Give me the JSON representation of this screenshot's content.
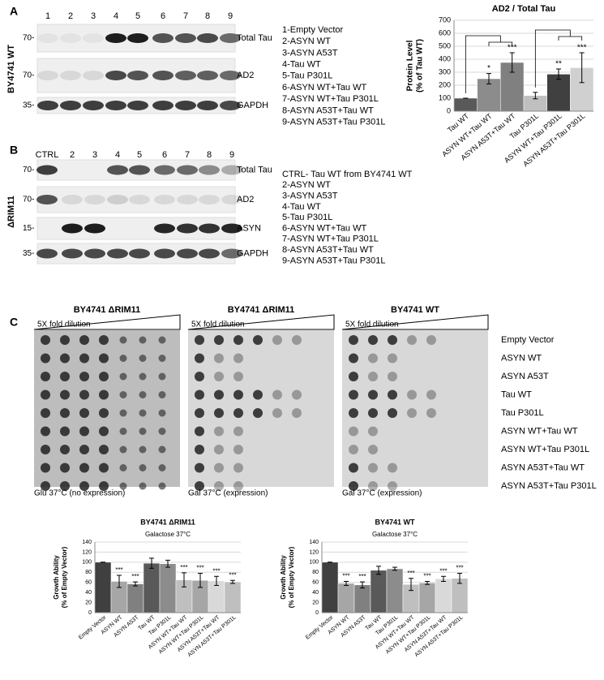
{
  "panel_a": {
    "label": "A",
    "strain": "BY4741 WT",
    "lanes": [
      "1",
      "2",
      "3",
      "4",
      "5",
      "6",
      "7",
      "8",
      "9"
    ],
    "blots": [
      {
        "marker": "70-",
        "name": "Total Tau"
      },
      {
        "marker": "70-",
        "name": "AD2"
      },
      {
        "marker": "35-",
        "name": "GAPDH"
      }
    ],
    "key": [
      "1-Empty Vector",
      "2-ASYN WT",
      "3-ASYN A53T",
      "4-Tau WT",
      "5-Tau P301L",
      "6-ASYN WT+Tau WT",
      "7-ASYN WT+Tau P301L",
      "8-ASYN A53T+Tau WT",
      "9-ASYN A53T+Tau P301L"
    ]
  },
  "panel_b": {
    "label": "B",
    "strain": "ΔRIM11",
    "lanes": [
      "CTRL",
      "2",
      "3",
      "4",
      "5",
      "6",
      "7",
      "8",
      "9"
    ],
    "blots": [
      {
        "marker": "70-",
        "name": "Total Tau"
      },
      {
        "marker": "70-",
        "name": "AD2"
      },
      {
        "marker": "15-",
        "name": "ASYN"
      },
      {
        "marker": "35-",
        "name": "GAPDH"
      }
    ],
    "key": [
      "CTRL- Tau WT from BY4741 WT",
      "2-ASYN WT",
      "3-ASYN A53T",
      "4-Tau WT",
      "5-Tau P301L",
      "6-ASYN WT+Tau WT",
      "7-ASYN WT+Tau P301L",
      "8-ASYN A53T+Tau WT",
      "9-ASYN A53T+Tau P301L"
    ]
  },
  "panel_c": {
    "label": "C",
    "dilution": "5X fold dilution",
    "plates": [
      {
        "title": "BY4741 ΔRIM11",
        "condition": "Glu 37°C (no expression)"
      },
      {
        "title": "BY4741 ΔRIM11",
        "condition": "Gal 37°C (expression)"
      },
      {
        "title": "BY4741 WT",
        "condition": "Gal 37°C (expression)"
      }
    ],
    "strains": [
      "Empty Vector",
      "ASYN WT",
      "ASYN A53T",
      "Tau WT",
      "Tau P301L",
      "ASYN WT+Tau WT",
      "ASYN WT+Tau P301L",
      "ASYN A53T+Tau WT",
      "ASYN A53T+Tau P301L"
    ]
  },
  "chart_data": [
    {
      "type": "bar",
      "title": "AD2 / Total Tau",
      "y_label": [
        "Protein Level",
        "(% of Tau WT)"
      ],
      "categories": [
        "Tau WT",
        "ASYN WT+Tau WT",
        "ASYN A53T+Tau WT",
        "Tau P301L",
        "ASYN WT+Tau P301L",
        "ASYN A53T+Tau P301L"
      ],
      "values": [
        100,
        250,
        375,
        120,
        285,
        335
      ],
      "errors": [
        0,
        40,
        75,
        25,
        40,
        115
      ],
      "significance": [
        null,
        "*",
        "***",
        null,
        "**",
        "***"
      ],
      "colors": [
        "#595959",
        "#8c8c8c",
        "#808080",
        "#bfbfbf",
        "#404040",
        "#d0d0d0"
      ],
      "ylim": [
        0,
        700
      ],
      "yticks": [
        0,
        100,
        200,
        300,
        400,
        500,
        600,
        700
      ]
    },
    {
      "type": "bar",
      "title": "BY4741 ΔRIM11",
      "subtitle": "Galactose 37°C",
      "y_label": [
        "Growth Ability",
        "(% of Empty Vector)"
      ],
      "categories": [
        "Empty Vector",
        "ASYN  WT",
        "ASYN  A53T",
        "Tau WT",
        "Tau P301L",
        "ASYN  WT+Tau WT",
        "ASYN  WT+Tau P301L",
        "ASYN  A53T+Tau WT",
        "ASYN  A53T+Tau P301L"
      ],
      "values": [
        100,
        62,
        57,
        98,
        97,
        65,
        64,
        63,
        61
      ],
      "errors": [
        0,
        12,
        4,
        10,
        7,
        14,
        14,
        9,
        3
      ],
      "significance": [
        null,
        "***",
        "***",
        null,
        null,
        "***",
        "***",
        "***",
        "***"
      ],
      "colors": [
        "#404040",
        "#a6a6a6",
        "#808080",
        "#595959",
        "#8c8c8c",
        "#bfbfbf",
        "#a6a6a6",
        "#d9d9d9",
        "#bfbfbf"
      ],
      "ylim": [
        0,
        140
      ],
      "yticks": [
        0,
        20,
        40,
        60,
        80,
        100,
        120,
        140
      ]
    },
    {
      "type": "bar",
      "title": "BY4741 WT",
      "subtitle": "Galactose 37°C",
      "y_label": [
        "Growth Ability",
        "(% of Empty Vector)"
      ],
      "categories": [
        "Empty Vector",
        "ASYN  WT",
        "ASYN  A53T",
        "Tau WT",
        "Tau P301L",
        "ASYN  WT+Tau WT",
        "ASYN  WT+Tau P301L",
        "ASYN  A53T+Tau WT",
        "ASYN  A53T+Tau P301L"
      ],
      "values": [
        100,
        58,
        55,
        84,
        87,
        56,
        59,
        67,
        68
      ],
      "errors": [
        0,
        4,
        6,
        8,
        3,
        12,
        3,
        5,
        10
      ],
      "significance": [
        null,
        "***",
        "***",
        null,
        null,
        "***",
        "***",
        "***",
        "***"
      ],
      "colors": [
        "#404040",
        "#a6a6a6",
        "#808080",
        "#595959",
        "#8c8c8c",
        "#bfbfbf",
        "#a6a6a6",
        "#d9d9d9",
        "#bfbfbf"
      ],
      "ylim": [
        0,
        140
      ],
      "yticks": [
        0,
        20,
        40,
        60,
        80,
        100,
        120,
        140
      ]
    }
  ]
}
